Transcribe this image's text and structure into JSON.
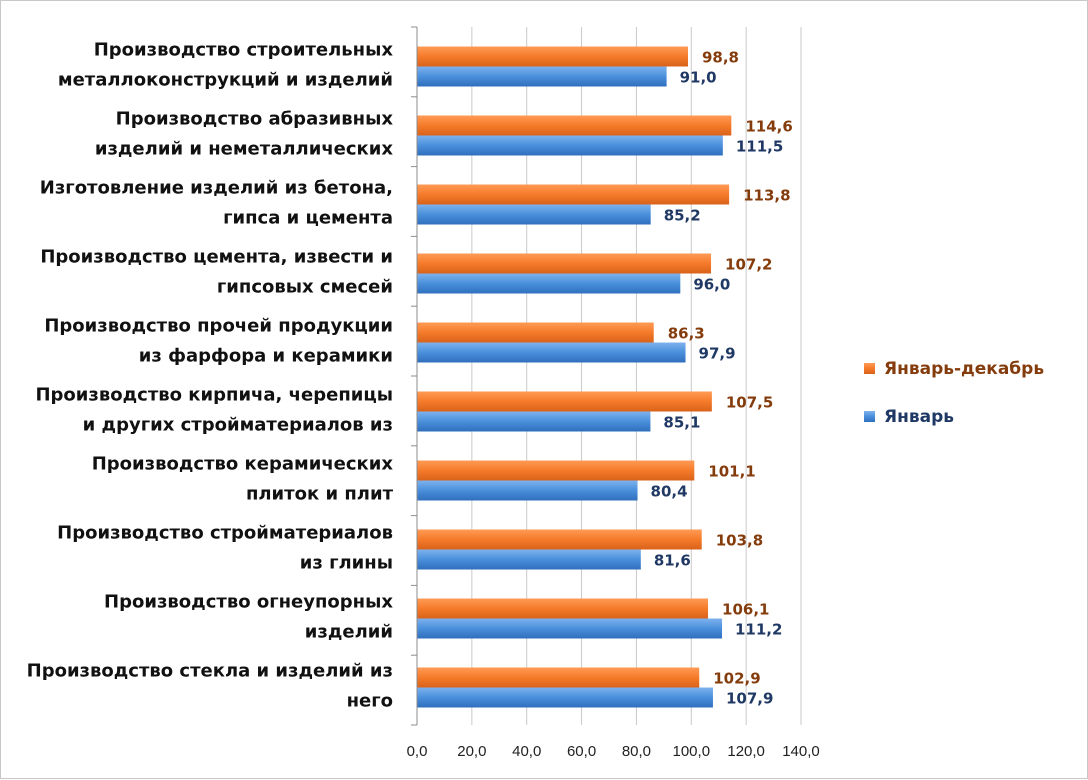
{
  "chart_data": {
    "type": "bar",
    "orientation": "horizontal",
    "categories": [
      [
        "Производство строительных",
        "металлоконструкций и изделий"
      ],
      [
        "Производство абразивных",
        "изделий и неметаллических"
      ],
      [
        "Изготовление изделий из бетона,",
        "гипса и цемента"
      ],
      [
        "Производство цемента, извести и",
        "гипсовых смесей"
      ],
      [
        "Производство прочей продукции",
        "из фарфора и керамики"
      ],
      [
        "Производство кирпича, черепицы",
        "и других стройматериалов из"
      ],
      [
        "Производство керамических",
        "плиток и плит"
      ],
      [
        "Производство стройматериалов",
        "из глины"
      ],
      [
        "Производство огнеупорных",
        "изделий"
      ],
      [
        "Производство стекла и изделий из",
        "него"
      ]
    ],
    "series": [
      {
        "name": "Январь-декабрь",
        "color": "#f57b2a",
        "label_color": "#843c0c",
        "values": [
          98.8,
          114.6,
          113.8,
          107.2,
          86.3,
          107.5,
          101.1,
          103.8,
          106.1,
          102.9
        ],
        "labels": [
          "98,8",
          "114,6",
          "113,8",
          "107,2",
          "86,3",
          "107,5",
          "101,1",
          "103,8",
          "106,1",
          "102,9"
        ]
      },
      {
        "name": "Январь",
        "color": "#4a8fdb",
        "label_color": "#1f3864",
        "values": [
          91.0,
          111.5,
          85.2,
          96.0,
          97.9,
          85.1,
          80.4,
          81.6,
          111.2,
          107.9
        ],
        "labels": [
          "91,0",
          "111,5",
          "85,2",
          "96,0",
          "97,9",
          "85,1",
          "80,4",
          "81,6",
          "111,2",
          "107,9"
        ]
      }
    ],
    "xlim": [
      0,
      140
    ],
    "xticks": [
      0,
      20,
      40,
      60,
      80,
      100,
      120,
      140
    ],
    "xtick_labels": [
      "0,0",
      "20,0",
      "40,0",
      "60,0",
      "80,0",
      "100,0",
      "120,0",
      "140,0"
    ],
    "grid": "vertical",
    "legend": "right",
    "title": "",
    "xlabel": "",
    "ylabel": ""
  }
}
